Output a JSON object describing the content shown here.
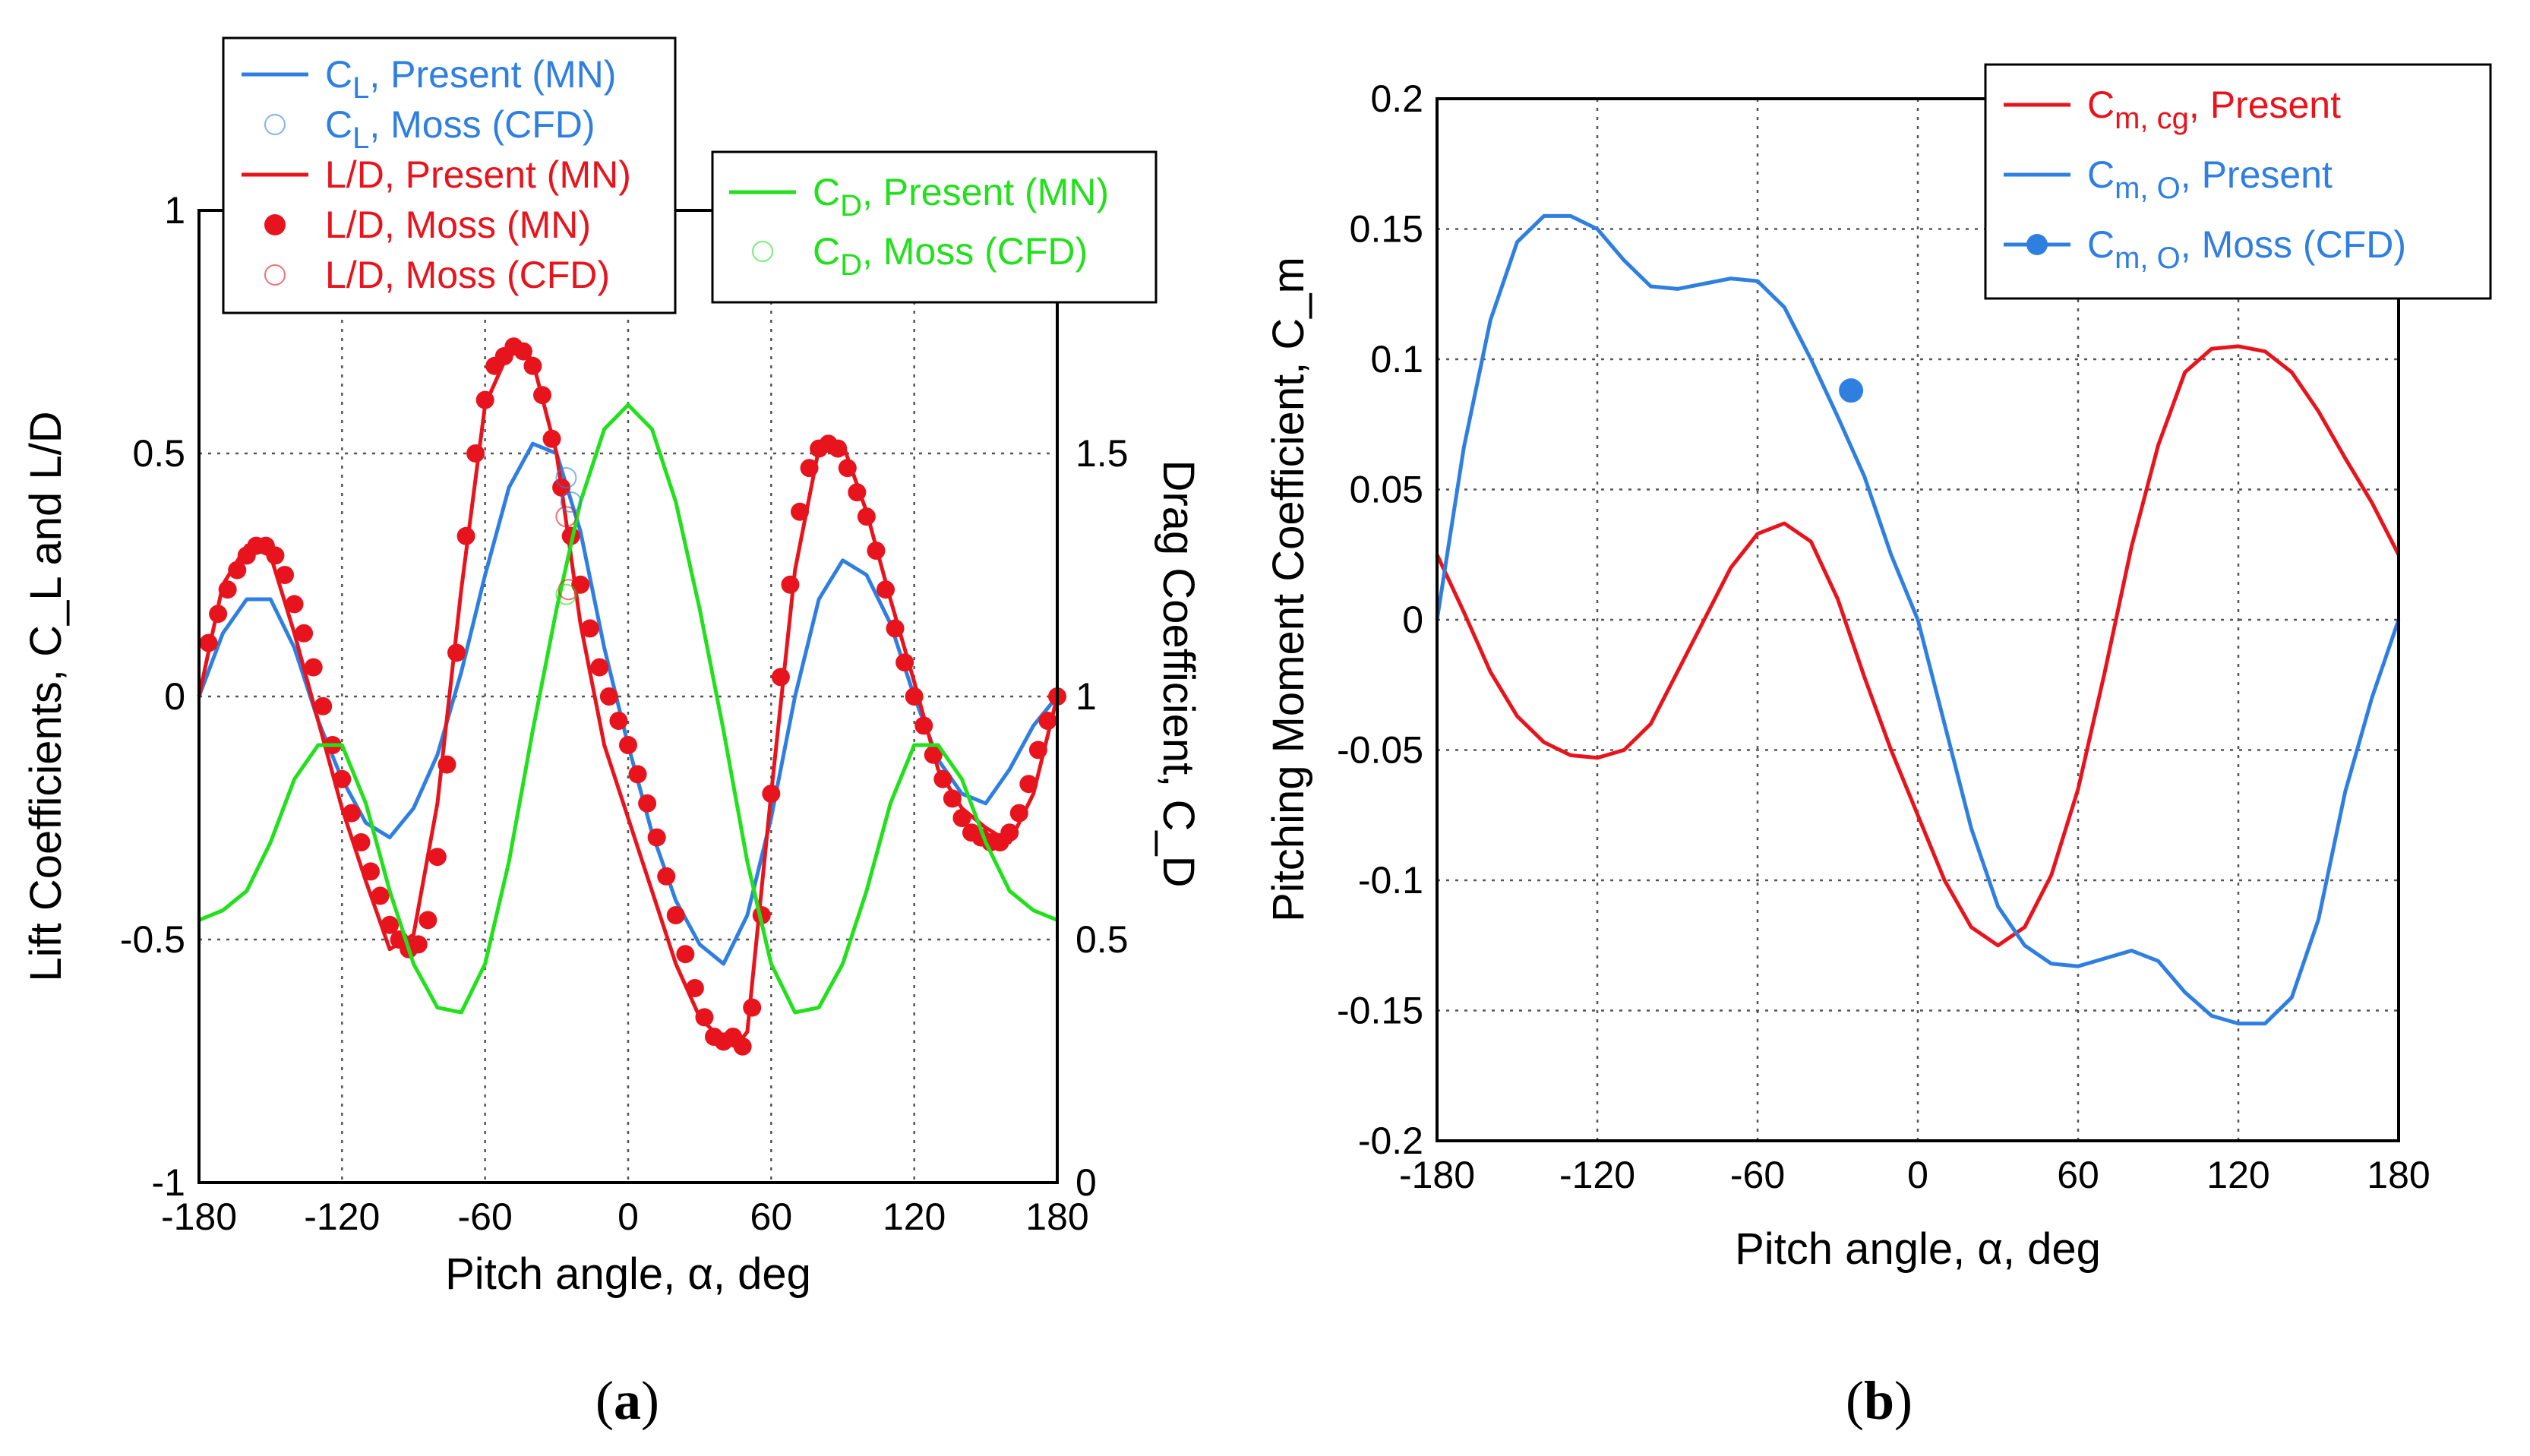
{
  "colors": {
    "blue": "#2f7fe0",
    "red": "#e8141d",
    "green": "#22e01c",
    "black": "#000000"
  },
  "chart_data": [
    {
      "panel": "(a)",
      "type": "line",
      "xlabel": "Pitch angle, α, deg",
      "ylabel_left": "Lift Coefficients, C_L and L/D",
      "ylabel_right": "Drag Coefficient, C_D",
      "xlim": [
        -180,
        180
      ],
      "ylim_left": [
        -1,
        1
      ],
      "ylim_right": [
        0,
        2
      ],
      "xticks": [
        "-180",
        "-120",
        "-60",
        "0",
        "60",
        "120",
        "180"
      ],
      "yticks_left": [
        "-1",
        "-0.5",
        "0",
        "0.5",
        "1"
      ],
      "yticks_right": [
        "0",
        "0.5",
        "1",
        "1.5"
      ],
      "grid": true,
      "legend_left": [
        {
          "main": "C",
          "sub": "L",
          "rest": ", Present (MN)",
          "text_color": "#2f7fe0",
          "marker": "line",
          "marker_color": "#2f7fe0"
        },
        {
          "main": "C",
          "sub": "L",
          "rest": ", Moss (CFD)",
          "text_color": "#2f7fe0",
          "marker": "open-circle",
          "marker_color": "#2f7fe0"
        },
        {
          "main": "L/D",
          "sub": "",
          "rest": ", Present (MN)",
          "text_color": "#e8141d",
          "marker": "line",
          "marker_color": "#e8141d"
        },
        {
          "main": "L/D",
          "sub": "",
          "rest": ", Moss (MN)",
          "text_color": "#e8141d",
          "marker": "filled-circle",
          "marker_color": "#e8141d"
        },
        {
          "main": "L/D",
          "sub": "",
          "rest": ", Moss (CFD)",
          "text_color": "#e8141d",
          "marker": "open-circle",
          "marker_color": "#e8141d"
        }
      ],
      "legend_right": [
        {
          "main": "C",
          "sub": "D",
          "rest": ", Present (MN)",
          "text_color": "#22e01c",
          "marker": "line",
          "marker_color": "#22e01c"
        },
        {
          "main": "C",
          "sub": "D",
          "rest": ", Moss (CFD)",
          "text_color": "#22e01c",
          "marker": "open-circle",
          "marker_color": "#22e01c"
        }
      ],
      "series": [
        {
          "name": "C_L, Present (MN)",
          "axis": "left",
          "color": "#2f7fe0",
          "style": "line",
          "x": [
            -180,
            -170,
            -160,
            -150,
            -140,
            -130,
            -120,
            -110,
            -100,
            -90,
            -80,
            -70,
            -60,
            -50,
            -40,
            -30,
            -20,
            -10,
            0,
            10,
            20,
            30,
            40,
            50,
            60,
            70,
            80,
            90,
            100,
            110,
            120,
            130,
            140,
            150,
            160,
            170,
            180
          ],
          "y": [
            0.0,
            0.13,
            0.2,
            0.2,
            0.1,
            -0.05,
            -0.17,
            -0.26,
            -0.29,
            -0.23,
            -0.12,
            0.05,
            0.25,
            0.43,
            0.52,
            0.5,
            0.34,
            0.1,
            -0.1,
            -0.28,
            -0.42,
            -0.51,
            -0.55,
            -0.45,
            -0.25,
            0.0,
            0.2,
            0.28,
            0.25,
            0.15,
            0.0,
            -0.13,
            -0.2,
            -0.22,
            -0.15,
            -0.06,
            0.0
          ]
        },
        {
          "name": "L/D, Present (MN)",
          "axis": "left",
          "color": "#e8141d",
          "style": "line",
          "x": [
            -180,
            -170,
            -160,
            -150,
            -140,
            -130,
            -120,
            -110,
            -100,
            -90,
            -80,
            -70,
            -60,
            -50,
            -45,
            -40,
            -30,
            -20,
            -10,
            0,
            10,
            20,
            30,
            40,
            45,
            50,
            60,
            70,
            80,
            90,
            100,
            110,
            120,
            130,
            140,
            150,
            160,
            170,
            180
          ],
          "y": [
            0.0,
            0.23,
            0.31,
            0.29,
            0.13,
            -0.05,
            -0.23,
            -0.38,
            -0.52,
            -0.49,
            -0.22,
            0.22,
            0.6,
            0.71,
            0.72,
            0.69,
            0.5,
            0.15,
            -0.1,
            -0.25,
            -0.4,
            -0.55,
            -0.66,
            -0.71,
            -0.72,
            -0.69,
            -0.2,
            0.26,
            0.51,
            0.52,
            0.38,
            0.2,
            0.03,
            -0.15,
            -0.23,
            -0.27,
            -0.3,
            -0.2,
            0.0
          ]
        },
        {
          "name": "L/D, Moss (MN)",
          "axis": "left",
          "color": "#e8141d",
          "style": "filled-circle",
          "x": [
            -176,
            -172,
            -168,
            -164,
            -160,
            -156,
            -152,
            -148,
            -144,
            -140,
            -136,
            -132,
            -128,
            -124,
            -120,
            -116,
            -112,
            -108,
            -104,
            -100,
            -96,
            -92,
            -88,
            -84,
            -80,
            -76,
            -72,
            -68,
            -64,
            -60,
            -56,
            -52,
            -48,
            -44,
            -40,
            -36,
            -32,
            -28,
            -24,
            -20,
            -16,
            -12,
            -8,
            -4,
            0,
            4,
            8,
            12,
            16,
            20,
            24,
            28,
            32,
            36,
            40,
            44,
            48,
            52,
            56,
            60,
            64,
            68,
            72,
            76,
            80,
            84,
            88,
            92,
            96,
            100,
            104,
            108,
            112,
            116,
            120,
            124,
            128,
            132,
            136,
            140,
            144,
            148,
            152,
            156,
            160,
            164,
            168,
            172,
            176,
            180
          ],
          "y": [
            0.11,
            0.17,
            0.22,
            0.26,
            0.29,
            0.31,
            0.31,
            0.29,
            0.25,
            0.19,
            0.13,
            0.06,
            -0.02,
            -0.1,
            -0.17,
            -0.24,
            -0.3,
            -0.36,
            -0.41,
            -0.47,
            -0.5,
            -0.52,
            -0.51,
            -0.46,
            -0.33,
            -0.14,
            0.09,
            0.33,
            0.5,
            0.61,
            0.68,
            0.7,
            0.72,
            0.71,
            0.68,
            0.62,
            0.53,
            0.43,
            0.33,
            0.23,
            0.14,
            0.06,
            0.0,
            -0.05,
            -0.1,
            -0.16,
            -0.22,
            -0.29,
            -0.37,
            -0.45,
            -0.53,
            -0.6,
            -0.66,
            -0.7,
            -0.71,
            -0.7,
            -0.72,
            -0.64,
            -0.45,
            -0.2,
            0.04,
            0.23,
            0.38,
            0.47,
            0.51,
            0.52,
            0.51,
            0.47,
            0.42,
            0.37,
            0.3,
            0.22,
            0.14,
            0.07,
            0.0,
            -0.06,
            -0.12,
            -0.17,
            -0.21,
            -0.25,
            -0.28,
            -0.29,
            -0.3,
            -0.3,
            -0.28,
            -0.24,
            -0.18,
            -0.11,
            -0.05,
            0.0
          ]
        },
        {
          "name": "C_D, Present (MN)",
          "axis": "right",
          "color": "#22e01c",
          "style": "line",
          "x": [
            -180,
            -170,
            -160,
            -150,
            -140,
            -130,
            -120,
            -110,
            -100,
            -90,
            -80,
            -70,
            -60,
            -50,
            -40,
            -30,
            -20,
            -10,
            0,
            10,
            20,
            30,
            40,
            50,
            60,
            70,
            80,
            90,
            100,
            110,
            120,
            130,
            140,
            150,
            160,
            170,
            180
          ],
          "y": [
            0.54,
            0.56,
            0.6,
            0.7,
            0.83,
            0.9,
            0.9,
            0.78,
            0.6,
            0.45,
            0.36,
            0.35,
            0.45,
            0.66,
            0.93,
            1.18,
            1.4,
            1.55,
            1.6,
            1.55,
            1.4,
            1.18,
            0.93,
            0.66,
            0.45,
            0.35,
            0.36,
            0.45,
            0.6,
            0.78,
            0.9,
            0.9,
            0.83,
            0.7,
            0.6,
            0.56,
            0.54
          ]
        },
        {
          "name": "C_L, Moss (CFD)",
          "axis": "left",
          "color": "#2f7fe0",
          "style": "open-circle",
          "x": [
            -26,
            -24
          ],
          "y": [
            0.45,
            0.4
          ]
        },
        {
          "name": "L/D, Moss (CFD)",
          "axis": "left",
          "color": "#e8141d",
          "style": "open-circle",
          "x": [
            -26,
            -25
          ],
          "y": [
            0.37,
            0.22
          ]
        },
        {
          "name": "C_D, Moss (CFD)",
          "axis": "right",
          "color": "#22e01c",
          "style": "open-circle",
          "x": [
            -26
          ],
          "y": [
            1.21
          ]
        }
      ]
    },
    {
      "panel": "(b)",
      "type": "line",
      "xlabel": "Pitch angle, α, deg",
      "ylabel": "Pitching Moment Coefficient, C_m",
      "xlim": [
        -180,
        180
      ],
      "ylim": [
        -0.2,
        0.2
      ],
      "xticks": [
        "-180",
        "-120",
        "-60",
        "0",
        "60",
        "120",
        "180"
      ],
      "yticks": [
        "-0.2",
        "-0.15",
        "-0.1",
        "-0.05",
        "0",
        "0.05",
        "0.1",
        "0.15",
        "0.2"
      ],
      "grid": true,
      "legend": [
        {
          "main": "C",
          "sub": "m, cg",
          "rest": ", Present",
          "text_color": "#e8141d",
          "marker": "line",
          "marker_color": "#e8141d"
        },
        {
          "main": "C",
          "sub": "m, O",
          "rest": ", Present",
          "text_color": "#2f7fe0",
          "marker": "line",
          "marker_color": "#2f7fe0"
        },
        {
          "main": "C",
          "sub": "m, O",
          "rest": ", Moss (CFD)",
          "text_color": "#2f7fe0",
          "marker": "line-filled-circle",
          "marker_color": "#2f7fe0"
        }
      ],
      "series": [
        {
          "name": "C_m,cg, Present",
          "color": "#e8141d",
          "style": "line",
          "x": [
            -180,
            -170,
            -160,
            -150,
            -140,
            -130,
            -120,
            -110,
            -100,
            -90,
            -80,
            -70,
            -60,
            -50,
            -40,
            -30,
            -20,
            -10,
            0,
            10,
            20,
            30,
            40,
            50,
            60,
            70,
            80,
            90,
            100,
            110,
            120,
            130,
            140,
            150,
            160,
            170,
            180
          ],
          "y": [
            0.025,
            0.003,
            -0.02,
            -0.037,
            -0.047,
            -0.052,
            -0.053,
            -0.05,
            -0.04,
            -0.02,
            0.0,
            0.02,
            0.033,
            0.037,
            0.03,
            0.008,
            -0.022,
            -0.05,
            -0.075,
            -0.1,
            -0.118,
            -0.125,
            -0.118,
            -0.098,
            -0.065,
            -0.02,
            0.028,
            0.067,
            0.095,
            0.104,
            0.105,
            0.103,
            0.095,
            0.08,
            0.062,
            0.045,
            0.025
          ]
        },
        {
          "name": "C_m,O, Present",
          "color": "#2f7fe0",
          "style": "line",
          "x": [
            -180,
            -170,
            -160,
            -150,
            -140,
            -130,
            -120,
            -110,
            -100,
            -90,
            -80,
            -70,
            -60,
            -50,
            -40,
            -30,
            -20,
            -10,
            0,
            10,
            20,
            30,
            40,
            50,
            60,
            70,
            80,
            90,
            100,
            110,
            120,
            130,
            140,
            150,
            160,
            170,
            180
          ],
          "y": [
            0.0,
            0.066,
            0.115,
            0.145,
            0.155,
            0.155,
            0.15,
            0.138,
            0.128,
            0.127,
            0.129,
            0.131,
            0.13,
            0.12,
            0.1,
            0.078,
            0.055,
            0.025,
            0.0,
            -0.04,
            -0.08,
            -0.11,
            -0.125,
            -0.132,
            -0.133,
            -0.13,
            -0.127,
            -0.131,
            -0.143,
            -0.152,
            -0.155,
            -0.155,
            -0.145,
            -0.115,
            -0.066,
            -0.03,
            0.0
          ]
        },
        {
          "name": "C_m,O, Moss (CFD)",
          "color": "#2f7fe0",
          "style": "filled-circle",
          "x": [
            -25
          ],
          "y": [
            0.088
          ]
        }
      ]
    }
  ],
  "captions": {
    "a": "a",
    "b": "b"
  }
}
